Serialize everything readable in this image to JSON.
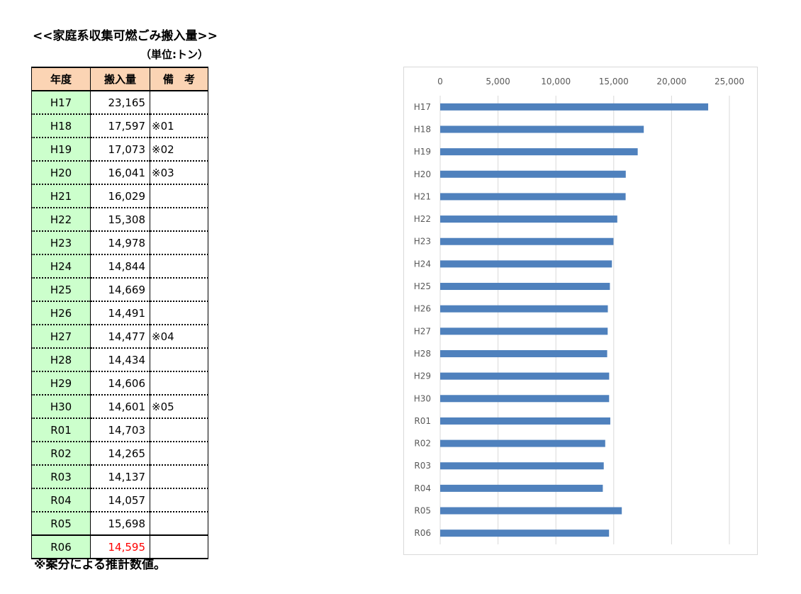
{
  "title": "<<家庭系収集可燃ごみ搬入量>>",
  "unit": "（単位:トン）",
  "table": {
    "headers": [
      "年度",
      "搬入量",
      "備　考"
    ],
    "rows": [
      {
        "year": "H17",
        "amount": "23,165",
        "note": ""
      },
      {
        "year": "H18",
        "amount": "17,597",
        "note": "※01"
      },
      {
        "year": "H19",
        "amount": "17,073",
        "note": "※02"
      },
      {
        "year": "H20",
        "amount": "16,041",
        "note": "※03"
      },
      {
        "year": "H21",
        "amount": "16,029",
        "note": ""
      },
      {
        "year": "H22",
        "amount": "15,308",
        "note": ""
      },
      {
        "year": "H23",
        "amount": "14,978",
        "note": ""
      },
      {
        "year": "H24",
        "amount": "14,844",
        "note": ""
      },
      {
        "year": "H25",
        "amount": "14,669",
        "note": ""
      },
      {
        "year": "H26",
        "amount": "14,491",
        "note": ""
      },
      {
        "year": "H27",
        "amount": "14,477",
        "note": "※04"
      },
      {
        "year": "H28",
        "amount": "14,434",
        "note": ""
      },
      {
        "year": "H29",
        "amount": "14,606",
        "note": ""
      },
      {
        "year": "H30",
        "amount": "14,601",
        "note": "※05"
      },
      {
        "year": "R01",
        "amount": "14,703",
        "note": ""
      },
      {
        "year": "R02",
        "amount": "14,265",
        "note": ""
      },
      {
        "year": "R03",
        "amount": "14,137",
        "note": ""
      },
      {
        "year": "R04",
        "amount": "14,057",
        "note": ""
      },
      {
        "year": "R05",
        "amount": "15,698",
        "note": ""
      },
      {
        "year": "R06",
        "amount": "14,595",
        "note": "",
        "highlight_color": "#ff0000"
      }
    ]
  },
  "footnote": "※案分による推計数値。",
  "chart_data": {
    "type": "bar",
    "orientation": "horizontal",
    "categories": [
      "H17",
      "H18",
      "H19",
      "H20",
      "H21",
      "H22",
      "H23",
      "H24",
      "H25",
      "H26",
      "H27",
      "H28",
      "H29",
      "H30",
      "R01",
      "R02",
      "R03",
      "R04",
      "R05",
      "R06"
    ],
    "values": [
      23165,
      17597,
      17073,
      16041,
      16029,
      15308,
      14978,
      14844,
      14669,
      14491,
      14477,
      14434,
      14606,
      14601,
      14703,
      14265,
      14137,
      14057,
      15698,
      14595
    ],
    "xlim": [
      0,
      25000
    ],
    "xticks": [
      0,
      5000,
      10000,
      15000,
      20000,
      25000
    ],
    "xtick_labels": [
      "0",
      "5,000",
      "10,000",
      "15,000",
      "20,000",
      "25,000"
    ],
    "x_axis_position": "top",
    "grid": true,
    "bar_color": "#4f81bd",
    "grid_color": "#d9d9d9"
  }
}
